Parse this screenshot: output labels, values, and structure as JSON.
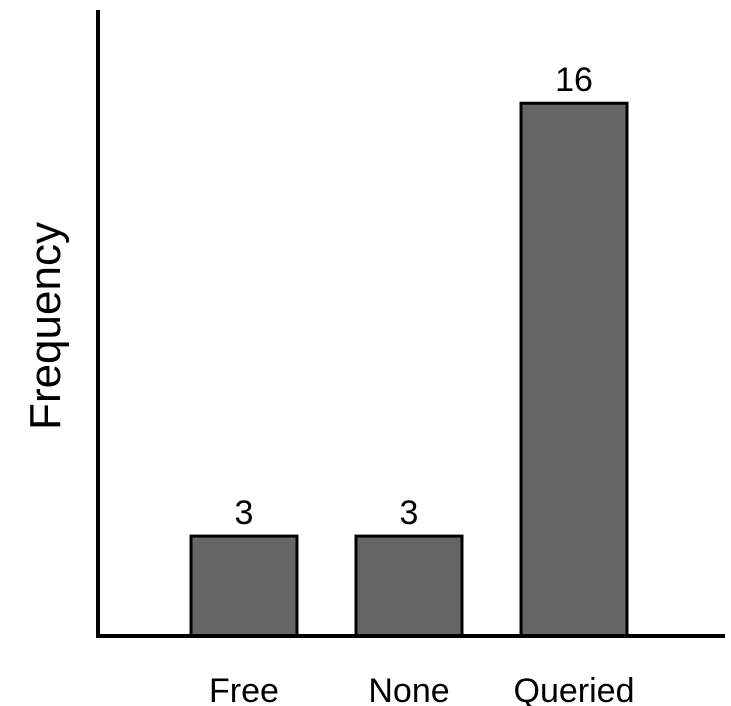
{
  "chart_data": {
    "type": "bar",
    "categories": [
      "Free",
      "None",
      "Queried"
    ],
    "values": [
      3,
      3,
      16
    ],
    "data_labels": [
      "3",
      "3",
      "16"
    ],
    "title": "",
    "xlabel": "",
    "ylabel": "Frequency",
    "ylim": [
      0,
      18.8
    ],
    "grid": false,
    "legend": "none",
    "colors": {
      "bar_fill": "#666666",
      "bar_stroke": "#000000",
      "axis": "#000000"
    }
  }
}
